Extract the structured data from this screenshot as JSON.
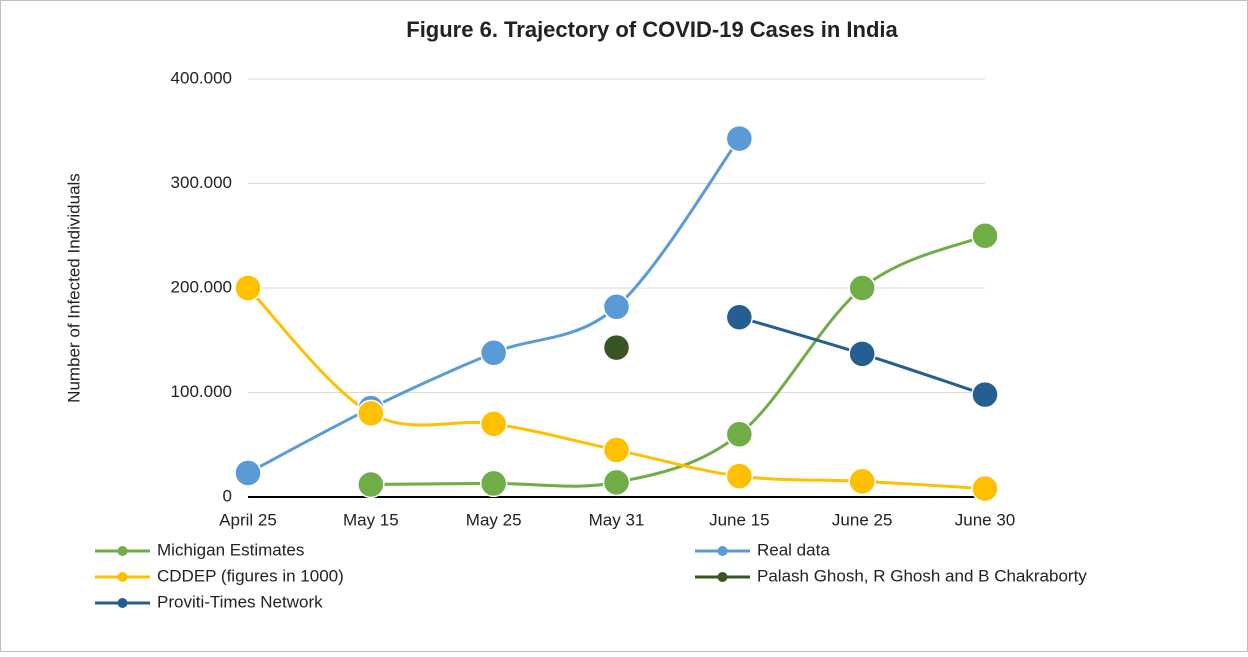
{
  "chart_data": {
    "type": "line",
    "title": "Figure 6. Trajectory of COVID-19 Cases in India",
    "y_label": "Number of Infected Individuals",
    "categories": [
      "April 25",
      "May 15",
      "May 25",
      "May 31",
      "June 15",
      "June 25",
      "June 30"
    ],
    "ylim": [
      0,
      400000
    ],
    "yticks": [
      0,
      {
        "value": 100000,
        "label": "100.000"
      },
      {
        "value": 200000,
        "label": "200.000"
      },
      {
        "value": 300000,
        "label": "300.000"
      },
      {
        "value": 400000,
        "label": "400.000"
      }
    ],
    "grid": true,
    "legend": "bottom",
    "series": [
      {
        "name": "Michigan Estimates",
        "color": "#70ad47",
        "values": [
          null,
          12000,
          13000,
          14000,
          60000,
          200000,
          250000
        ]
      },
      {
        "name": "Real data",
        "color": "#5b9bd5",
        "values": [
          23000,
          85000,
          138000,
          182000,
          343000,
          null,
          null
        ]
      },
      {
        "name": "CDDEP (figures in 1000)",
        "color": "#ffc000",
        "values": [
          200000,
          80000,
          70000,
          45000,
          20000,
          15000,
          8000
        ]
      },
      {
        "name": "Palash Ghosh, R Ghosh and B Chakraborty",
        "color": "#375623",
        "values": [
          null,
          null,
          null,
          143000,
          null,
          null,
          null
        ]
      },
      {
        "name": "Proviti-Times Network",
        "color": "#255e91",
        "values": [
          null,
          null,
          null,
          null,
          172000,
          137000,
          98000
        ]
      }
    ]
  }
}
